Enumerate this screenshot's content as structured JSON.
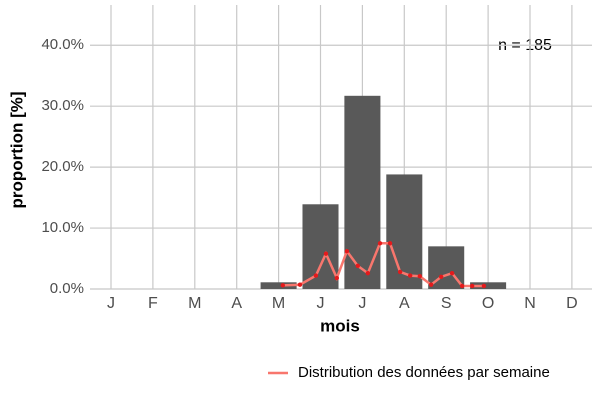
{
  "chart_data": {
    "type": "bar",
    "x_label": "mois",
    "y_label": "proportion [%]",
    "annotation": "n = 185",
    "categories": [
      "J",
      "F",
      "M",
      "A",
      "M",
      "J",
      "J",
      "A",
      "S",
      "O",
      "N",
      "D"
    ],
    "values": [
      0,
      0,
      0,
      0,
      1.1,
      13.9,
      31.7,
      18.8,
      7.0,
      1.1,
      0,
      0
    ],
    "color": "#595959",
    "ylim": [
      0,
      46.6
    ],
    "yticks": [
      {
        "value": 0,
        "label": "0.0%"
      },
      {
        "value": 10,
        "label": "10.0%"
      },
      {
        "value": 20,
        "label": "20.0%"
      },
      {
        "value": 30,
        "label": "30.0%"
      },
      {
        "value": 40,
        "label": "40.0%"
      }
    ],
    "grid": true,
    "line": {
      "name": "Distribution des données par semaine",
      "color": "#f8766d",
      "point_color": "#e41a1c",
      "x": [
        4.1,
        4.51,
        4.89,
        5.13,
        5.39,
        5.63,
        5.89,
        6.13,
        6.42,
        6.66,
        6.9,
        7.14,
        7.37,
        7.64,
        7.88,
        8.14,
        8.38,
        8.62,
        8.9
      ],
      "values": [
        0.6,
        0.7,
        2.2,
        5.8,
        1.8,
        6.2,
        3.8,
        2.6,
        7.5,
        7.5,
        2.8,
        2.2,
        2.1,
        0.7,
        2.0,
        2.6,
        0.5,
        0.5,
        0.5
      ]
    },
    "legend": "bottom-right"
  }
}
